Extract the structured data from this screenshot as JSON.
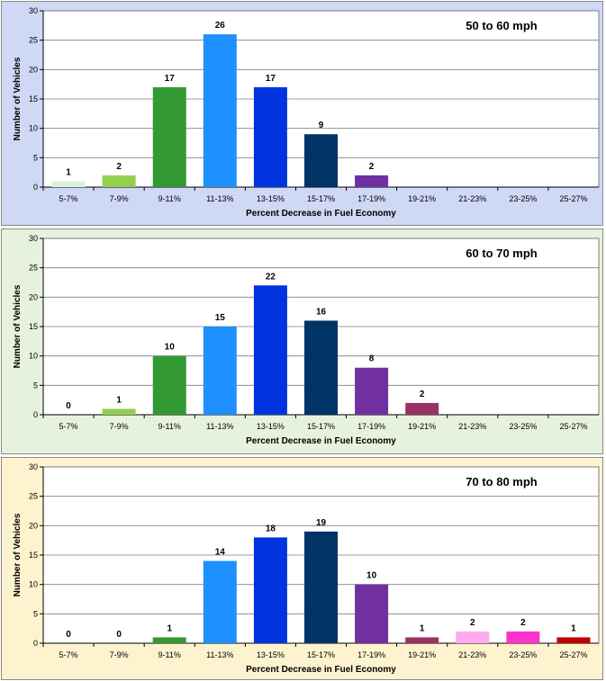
{
  "chart_data": [
    {
      "type": "bar",
      "title": "50 to 60 mph",
      "xlabel": "Percent Decrease in Fuel Economy",
      "ylabel": "Number of Vehicles",
      "ylim": [
        0,
        30
      ],
      "yticks": [
        0,
        5,
        10,
        15,
        20,
        25,
        30
      ],
      "grid": true,
      "background": "#cfd8f5",
      "categories": [
        "5-7%",
        "7-9%",
        "9-11%",
        "11-13%",
        "13-15%",
        "15-17%",
        "17-19%",
        "19-21%",
        "21-23%",
        "23-25%",
        "25-27%"
      ],
      "values": [
        1,
        2,
        17,
        26,
        17,
        9,
        2,
        null,
        null,
        null,
        null
      ],
      "colors": [
        "#d9f2d9",
        "#92d050",
        "#339933",
        "#1e90ff",
        "#0033dd",
        "#003366",
        "#7030a0",
        "#993366",
        "#ffaaee",
        "#ff33cc",
        "#c00000"
      ]
    },
    {
      "type": "bar",
      "title": "60 to 70 mph",
      "xlabel": "Percent Decrease in Fuel Economy",
      "ylabel": "Number of Vehicles",
      "ylim": [
        0,
        30
      ],
      "yticks": [
        0,
        5,
        10,
        15,
        20,
        25,
        30
      ],
      "grid": true,
      "background": "#e6f2dd",
      "categories": [
        "5-7%",
        "7-9%",
        "9-11%",
        "11-13%",
        "13-15%",
        "15-17%",
        "17-19%",
        "19-21%",
        "21-23%",
        "23-25%",
        "25-27%"
      ],
      "values": [
        0,
        1,
        10,
        15,
        22,
        16,
        8,
        2,
        null,
        null,
        null
      ],
      "colors": [
        "#d9f2d9",
        "#92d050",
        "#339933",
        "#1e90ff",
        "#0033dd",
        "#003366",
        "#7030a0",
        "#993366",
        "#ffaaee",
        "#ff33cc",
        "#c00000"
      ]
    },
    {
      "type": "bar",
      "title": "70 to 80 mph",
      "xlabel": "Percent Decrease in Fuel Economy",
      "ylabel": "Number of Vehicles",
      "ylim": [
        0,
        30
      ],
      "yticks": [
        0,
        5,
        10,
        15,
        20,
        25,
        30
      ],
      "grid": true,
      "background": "#fdf3cf",
      "categories": [
        "5-7%",
        "7-9%",
        "9-11%",
        "11-13%",
        "13-15%",
        "15-17%",
        "17-19%",
        "19-21%",
        "21-23%",
        "23-25%",
        "25-27%"
      ],
      "values": [
        0,
        0,
        1,
        14,
        18,
        19,
        10,
        1,
        2,
        2,
        1
      ],
      "colors": [
        "#d9f2d9",
        "#92d050",
        "#339933",
        "#1e90ff",
        "#0033dd",
        "#003366",
        "#7030a0",
        "#993366",
        "#ffaaee",
        "#ff33cc",
        "#c00000"
      ]
    }
  ]
}
